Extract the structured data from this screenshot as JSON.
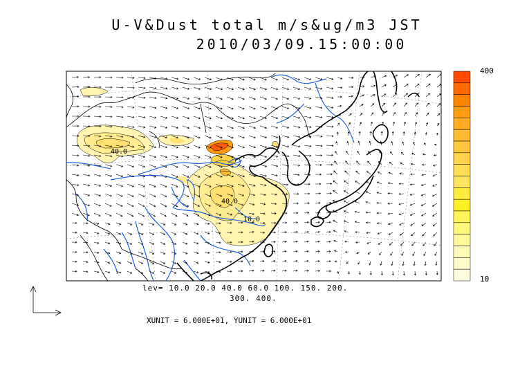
{
  "title": {
    "line1": "U-V&Dust total m/s&ug/m3 JST",
    "line2": "2010/03/09.15:00:00"
  },
  "legend": {
    "levels_line1": "lev= 10.0 20.0 40.0 60.0 100. 150. 200.",
    "levels_line2": "300. 400.",
    "unit_text": "XUNIT = 6.000E+01, YUNIT = 6.000E+01"
  },
  "colorbar": {
    "max_label": "400",
    "min_label": "10",
    "colors": [
      "#ff4a00",
      "#ff6a00",
      "#ff8400",
      "#ff9c10",
      "#ffaa22",
      "#ffba33",
      "#ffc73f",
      "#ffd24c",
      "#ffdd55",
      "#ffe55f",
      "#ffeb40",
      "#fff025",
      "#fff45a",
      "#fff77a",
      "#fff99a",
      "#fffbb8",
      "#fffccc",
      "#fffde0"
    ]
  },
  "contour_labels": [
    "40.0",
    "40.0",
    "10.0"
  ],
  "colors": {
    "coastline": "#000000",
    "rivers": "#1f5fe0",
    "dust_low": "#fff5b0",
    "dust_high": "#ff4a00"
  }
}
